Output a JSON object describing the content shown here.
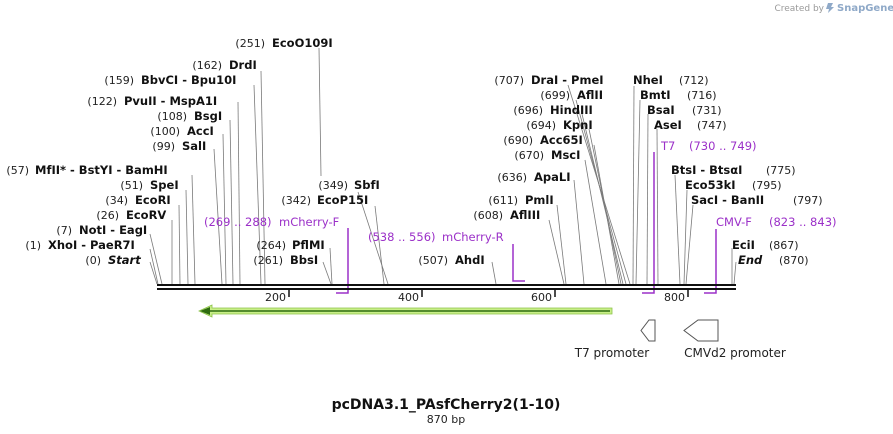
{
  "brand": {
    "prefix": "Created by",
    "name": "SnapGene"
  },
  "title": "pcDNA3.1_PAsfCherry2(1-10)",
  "length_label": "870 bp",
  "axis_ticks": [
    {
      "pos": 200,
      "label": "200"
    },
    {
      "pos": 400,
      "label": "400"
    },
    {
      "pos": 600,
      "label": "600"
    },
    {
      "pos": 800,
      "label": "800"
    }
  ],
  "left_sites": [
    {
      "pos": "(251)",
      "name": "EcoO109I"
    },
    {
      "pos": "(162)",
      "name": "DrdI"
    },
    {
      "pos": "(159)",
      "name": "BbvCI - Bpu10I"
    },
    {
      "pos": "(122)",
      "name": "PvuII - MspA1I"
    },
    {
      "pos": "(108)",
      "name": "BsgI"
    },
    {
      "pos": "(100)",
      "name": "AccI"
    },
    {
      "pos": "(99)",
      "name": "SalI"
    },
    {
      "pos": "(57)",
      "name": "MfII* - BstYI - BamHI"
    },
    {
      "pos": "(51)",
      "name": "SpeI"
    },
    {
      "pos": "(34)",
      "name": "EcoRI"
    },
    {
      "pos": "(26)",
      "name": "EcoRV"
    },
    {
      "pos": "(7)",
      "name": "NotI - EagI"
    },
    {
      "pos": "(1)",
      "name": "XhoI - PaeR7I"
    },
    {
      "pos": "(0)",
      "name": "Start"
    }
  ],
  "mid_sites": [
    {
      "pos": "(349)",
      "name": "SbfI"
    },
    {
      "pos": "(342)",
      "name": "EcoP15I"
    },
    {
      "pos": "(264)",
      "name": "PflMI"
    },
    {
      "pos": "(261)",
      "name": "BbsI"
    }
  ],
  "center_sites": [
    {
      "pos": "(707)",
      "name": "DraI - PmeI"
    },
    {
      "pos": "(699)",
      "name": "AflII"
    },
    {
      "pos": "(696)",
      "name": "HindIII"
    },
    {
      "pos": "(694)",
      "name": "KpnI"
    },
    {
      "pos": "(690)",
      "name": "Acc65I"
    },
    {
      "pos": "(670)",
      "name": "MscI"
    },
    {
      "pos": "(636)",
      "name": "ApaLI"
    },
    {
      "pos": "(611)",
      "name": "PmlI"
    },
    {
      "pos": "(608)",
      "name": "AflIII"
    },
    {
      "pos": "(507)",
      "name": "AhdI"
    }
  ],
  "right_sites": [
    {
      "name": "NheI",
      "pos": "(712)"
    },
    {
      "name": "BmtI",
      "pos": "(716)"
    },
    {
      "name": "BsaI",
      "pos": "(731)"
    },
    {
      "name": "AseI",
      "pos": "(747)"
    },
    {
      "name": "BtsI - BtsαI",
      "pos": "(775)"
    },
    {
      "name": "Eco53kI",
      "pos": "(795)"
    },
    {
      "name": "SacI - BanII",
      "pos": "(797)"
    },
    {
      "name": "EciI",
      "pos": "(867)"
    },
    {
      "name": "End",
      "pos": "(870)"
    }
  ],
  "primers": [
    {
      "name": "mCherry-F",
      "range": "(269 .. 288)"
    },
    {
      "name": "mCherry-R",
      "range": "(538 .. 556)"
    },
    {
      "name": "T7",
      "range": "(730 .. 749)"
    },
    {
      "name": "CMV-F",
      "range": "(823 .. 843)"
    }
  ],
  "features": [
    {
      "name": "T7 promoter"
    },
    {
      "name": "CMVd2 promoter"
    }
  ],
  "colors": {
    "primer": "#9b30c8",
    "cds_fill": "#c8ef88",
    "cds_stroke": "#2e6b10",
    "leader": "#7a7a7a"
  }
}
